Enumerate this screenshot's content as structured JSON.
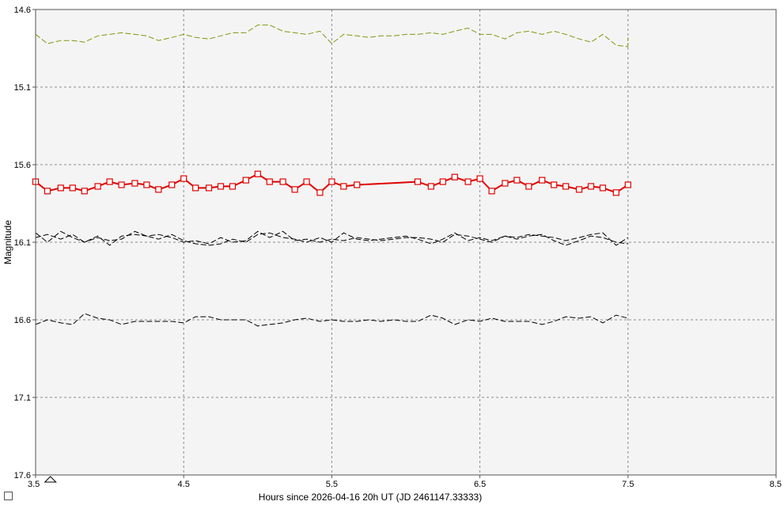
{
  "chart_data": {
    "type": "line",
    "xlabel": "Hours since 2026-04-16 20h UT (JD 2461147.33333)",
    "ylabel": "Magnitude",
    "xlim": [
      3.5,
      8.5
    ],
    "ylim": [
      17.6,
      14.6
    ],
    "y_inverted": true,
    "grid": true,
    "x_ticks": [
      "3.5",
      "4.5",
      "5.5",
      "6.5",
      "7.5",
      "8.5"
    ],
    "y_ticks": [
      "14.6",
      "15.1",
      "15.6",
      "16.1",
      "16.6",
      "17.1",
      "17.6"
    ],
    "x_tick_values": [
      3.5,
      4.5,
      5.5,
      6.5,
      7.5,
      8.5
    ],
    "y_tick_values": [
      14.6,
      15.1,
      15.6,
      16.1,
      16.6,
      17.1,
      17.6
    ],
    "colors": {
      "plot_bg": "#f4f4f4",
      "grid": "#8c8c8c",
      "target": "#e00000",
      "comp": "#7a9a10",
      "check": "#000000"
    },
    "series": [
      {
        "role": "comparison-star",
        "color": "#7a9a10",
        "style": "dashed",
        "points": [
          [
            3.5,
            14.76
          ],
          [
            3.58,
            14.82
          ],
          [
            3.67,
            14.8
          ],
          [
            3.75,
            14.8
          ],
          [
            3.83,
            14.81
          ],
          [
            3.92,
            14.77
          ],
          [
            4.0,
            14.76
          ],
          [
            4.08,
            14.75
          ],
          [
            4.17,
            14.76
          ],
          [
            4.25,
            14.77
          ],
          [
            4.33,
            14.8
          ],
          [
            4.42,
            14.78
          ],
          [
            4.5,
            14.76
          ],
          [
            4.58,
            14.78
          ],
          [
            4.67,
            14.79
          ],
          [
            4.75,
            14.77
          ],
          [
            4.83,
            14.75
          ],
          [
            4.92,
            14.75
          ],
          [
            5.0,
            14.7
          ],
          [
            5.08,
            14.7
          ],
          [
            5.17,
            14.74
          ],
          [
            5.25,
            14.75
          ],
          [
            5.33,
            14.76
          ],
          [
            5.42,
            14.74
          ],
          [
            5.5,
            14.82
          ],
          [
            5.58,
            14.76
          ],
          [
            5.67,
            14.77
          ],
          [
            5.75,
            14.78
          ],
          [
            5.83,
            14.77
          ],
          [
            5.92,
            14.77
          ],
          [
            6.0,
            14.76
          ],
          [
            6.08,
            14.76
          ],
          [
            6.17,
            14.75
          ],
          [
            6.25,
            14.76
          ],
          [
            6.33,
            14.74
          ],
          [
            6.42,
            14.72
          ],
          [
            6.5,
            14.76
          ],
          [
            6.58,
            14.76
          ],
          [
            6.67,
            14.79
          ],
          [
            6.75,
            14.75
          ],
          [
            6.83,
            14.74
          ],
          [
            6.92,
            14.76
          ],
          [
            7.0,
            14.74
          ],
          [
            7.08,
            14.76
          ],
          [
            7.17,
            14.79
          ],
          [
            7.25,
            14.81
          ],
          [
            7.33,
            14.76
          ],
          [
            7.42,
            14.83
          ],
          [
            7.5,
            14.84
          ],
          [
            7.5,
            14.78
          ]
        ]
      },
      {
        "role": "target",
        "color": "#e00000",
        "style": "solid-squares",
        "points": [
          [
            3.5,
            15.71
          ],
          [
            3.58,
            15.77
          ],
          [
            3.67,
            15.75
          ],
          [
            3.75,
            15.75
          ],
          [
            3.83,
            15.77
          ],
          [
            3.92,
            15.74
          ],
          [
            4.0,
            15.71
          ],
          [
            4.08,
            15.73
          ],
          [
            4.17,
            15.72
          ],
          [
            4.25,
            15.73
          ],
          [
            4.33,
            15.76
          ],
          [
            4.42,
            15.73
          ],
          [
            4.5,
            15.69
          ],
          [
            4.58,
            15.75
          ],
          [
            4.67,
            15.75
          ],
          [
            4.75,
            15.74
          ],
          [
            4.83,
            15.74
          ],
          [
            4.92,
            15.7
          ],
          [
            5.0,
            15.66
          ],
          [
            5.08,
            15.71
          ],
          [
            5.17,
            15.71
          ],
          [
            5.25,
            15.76
          ],
          [
            5.33,
            15.71
          ],
          [
            5.42,
            15.78
          ],
          [
            5.5,
            15.71
          ],
          [
            5.58,
            15.74
          ],
          [
            5.67,
            15.73
          ],
          [
            6.08,
            15.71
          ],
          [
            6.17,
            15.74
          ],
          [
            6.25,
            15.71
          ],
          [
            6.33,
            15.68
          ],
          [
            6.42,
            15.71
          ],
          [
            6.5,
            15.69
          ],
          [
            6.58,
            15.77
          ],
          [
            6.67,
            15.72
          ],
          [
            6.75,
            15.7
          ],
          [
            6.83,
            15.74
          ],
          [
            6.92,
            15.7
          ],
          [
            7.0,
            15.73
          ],
          [
            7.08,
            15.74
          ],
          [
            7.17,
            15.76
          ],
          [
            7.25,
            15.74
          ],
          [
            7.33,
            15.75
          ],
          [
            7.42,
            15.78
          ],
          [
            7.5,
            15.73
          ]
        ]
      },
      {
        "role": "check-star-1",
        "color": "#000000",
        "style": "dashed",
        "points": [
          [
            3.5,
            16.04
          ],
          [
            3.58,
            16.1
          ],
          [
            3.67,
            16.03
          ],
          [
            3.75,
            16.07
          ],
          [
            3.83,
            16.1
          ],
          [
            3.92,
            16.07
          ],
          [
            4.0,
            16.09
          ],
          [
            4.08,
            16.08
          ],
          [
            4.17,
            16.03
          ],
          [
            4.25,
            16.06
          ],
          [
            4.33,
            16.08
          ],
          [
            4.42,
            16.05
          ],
          [
            4.5,
            16.09
          ],
          [
            4.58,
            16.11
          ],
          [
            4.67,
            16.12
          ],
          [
            4.75,
            16.11
          ],
          [
            4.83,
            16.08
          ],
          [
            4.92,
            16.1
          ],
          [
            5.0,
            16.05
          ],
          [
            5.08,
            16.04
          ],
          [
            5.17,
            16.07
          ],
          [
            5.25,
            16.08
          ],
          [
            5.33,
            16.1
          ],
          [
            5.42,
            16.07
          ],
          [
            5.5,
            16.1
          ],
          [
            5.58,
            16.04
          ],
          [
            5.67,
            16.08
          ],
          [
            5.75,
            16.09
          ],
          [
            5.83,
            16.08
          ],
          [
            5.92,
            16.07
          ],
          [
            6.0,
            16.06
          ],
          [
            6.08,
            16.08
          ],
          [
            6.17,
            16.11
          ],
          [
            6.25,
            16.08
          ],
          [
            6.33,
            16.04
          ],
          [
            6.42,
            16.09
          ],
          [
            6.5,
            16.07
          ],
          [
            6.58,
            16.09
          ],
          [
            6.67,
            16.06
          ],
          [
            6.75,
            16.08
          ],
          [
            6.83,
            16.06
          ],
          [
            6.92,
            16.05
          ],
          [
            7.0,
            16.09
          ],
          [
            7.08,
            16.12
          ],
          [
            7.17,
            16.09
          ],
          [
            7.25,
            16.06
          ],
          [
            7.33,
            16.07
          ],
          [
            7.42,
            16.1
          ],
          [
            7.5,
            16.11
          ]
        ]
      },
      {
        "role": "check-star-2",
        "color": "#000000",
        "style": "dashed",
        "points": [
          [
            3.5,
            16.07
          ],
          [
            3.58,
            16.05
          ],
          [
            3.67,
            16.08
          ],
          [
            3.75,
            16.05
          ],
          [
            3.83,
            16.1
          ],
          [
            3.92,
            16.06
          ],
          [
            4.0,
            16.12
          ],
          [
            4.08,
            16.06
          ],
          [
            4.17,
            16.05
          ],
          [
            4.25,
            16.06
          ],
          [
            4.33,
            16.05
          ],
          [
            4.42,
            16.07
          ],
          [
            4.5,
            16.1
          ],
          [
            4.58,
            16.09
          ],
          [
            4.67,
            16.11
          ],
          [
            4.75,
            16.07
          ],
          [
            4.83,
            16.1
          ],
          [
            4.92,
            16.09
          ],
          [
            5.0,
            16.03
          ],
          [
            5.08,
            16.07
          ],
          [
            5.17,
            16.03
          ],
          [
            5.25,
            16.09
          ],
          [
            5.33,
            16.08
          ],
          [
            5.42,
            16.1
          ],
          [
            5.5,
            16.08
          ],
          [
            5.58,
            16.09
          ],
          [
            5.67,
            16.07
          ],
          [
            5.75,
            16.08
          ],
          [
            5.83,
            16.09
          ],
          [
            5.92,
            16.08
          ],
          [
            6.0,
            16.07
          ],
          [
            6.08,
            16.07
          ],
          [
            6.17,
            16.08
          ],
          [
            6.25,
            16.1
          ],
          [
            6.33,
            16.05
          ],
          [
            6.42,
            16.06
          ],
          [
            6.5,
            16.08
          ],
          [
            6.58,
            16.1
          ],
          [
            6.67,
            16.06
          ],
          [
            6.75,
            16.07
          ],
          [
            6.83,
            16.05
          ],
          [
            6.92,
            16.06
          ],
          [
            7.0,
            16.07
          ],
          [
            7.08,
            16.09
          ],
          [
            7.17,
            16.07
          ],
          [
            7.25,
            16.05
          ],
          [
            7.33,
            16.04
          ],
          [
            7.42,
            16.12
          ],
          [
            7.5,
            16.07
          ]
        ]
      },
      {
        "role": "check-star-3",
        "color": "#000000",
        "style": "dashed",
        "points": [
          [
            3.5,
            16.63
          ],
          [
            3.58,
            16.6
          ],
          [
            3.67,
            16.62
          ],
          [
            3.75,
            16.63
          ],
          [
            3.83,
            16.56
          ],
          [
            3.92,
            16.59
          ],
          [
            4.0,
            16.6
          ],
          [
            4.08,
            16.63
          ],
          [
            4.17,
            16.61
          ],
          [
            4.25,
            16.61
          ],
          [
            4.33,
            16.61
          ],
          [
            4.42,
            16.61
          ],
          [
            4.5,
            16.62
          ],
          [
            4.58,
            16.58
          ],
          [
            4.67,
            16.58
          ],
          [
            4.75,
            16.6
          ],
          [
            4.83,
            16.6
          ],
          [
            4.92,
            16.6
          ],
          [
            5.0,
            16.64
          ],
          [
            5.08,
            16.63
          ],
          [
            5.17,
            16.62
          ],
          [
            5.25,
            16.6
          ],
          [
            5.33,
            16.59
          ],
          [
            5.42,
            16.61
          ],
          [
            5.5,
            16.6
          ],
          [
            5.58,
            16.61
          ],
          [
            5.67,
            16.61
          ],
          [
            5.75,
            16.6
          ],
          [
            5.83,
            16.61
          ],
          [
            5.92,
            16.6
          ],
          [
            6.0,
            16.61
          ],
          [
            6.08,
            16.61
          ],
          [
            6.17,
            16.57
          ],
          [
            6.25,
            16.59
          ],
          [
            6.33,
            16.63
          ],
          [
            6.42,
            16.6
          ],
          [
            6.5,
            16.61
          ],
          [
            6.58,
            16.59
          ],
          [
            6.67,
            16.61
          ],
          [
            6.75,
            16.61
          ],
          [
            6.83,
            16.61
          ],
          [
            6.92,
            16.63
          ],
          [
            7.0,
            16.61
          ],
          [
            7.08,
            16.58
          ],
          [
            7.17,
            16.59
          ],
          [
            7.25,
            16.58
          ],
          [
            7.33,
            16.62
          ],
          [
            7.42,
            16.57
          ],
          [
            7.5,
            16.59
          ]
        ]
      }
    ]
  }
}
